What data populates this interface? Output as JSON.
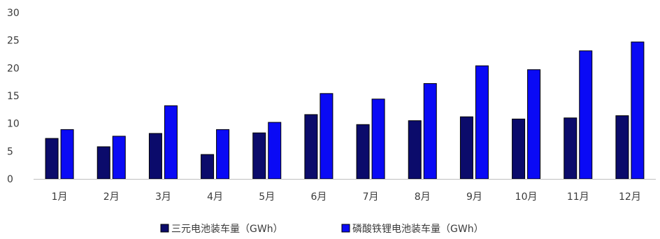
{
  "chart_data": {
    "type": "bar",
    "categories": [
      "1月",
      "2月",
      "3月",
      "4月",
      "5月",
      "6月",
      "7月",
      "8月",
      "9月",
      "10月",
      "11月",
      "12月"
    ],
    "series": [
      {
        "name": "三元电池装车量（GWh）",
        "color": "#0b0b6b",
        "values": [
          7.3,
          5.8,
          8.2,
          4.4,
          8.3,
          11.6,
          9.8,
          10.5,
          11.2,
          10.8,
          11.0,
          11.4
        ]
      },
      {
        "name": "磷酸铁锂电池装车量（GWh）",
        "color": "#0a0af5",
        "values": [
          8.9,
          7.7,
          13.2,
          8.9,
          10.2,
          15.4,
          14.4,
          17.2,
          20.4,
          19.7,
          23.1,
          24.7
        ]
      }
    ],
    "title": "",
    "xlabel": "",
    "ylabel": "",
    "ylim": [
      0,
      30
    ],
    "yticks": [
      0,
      5,
      10,
      15,
      20,
      25,
      30
    ],
    "grid": false,
    "legend": "bottom-center"
  }
}
